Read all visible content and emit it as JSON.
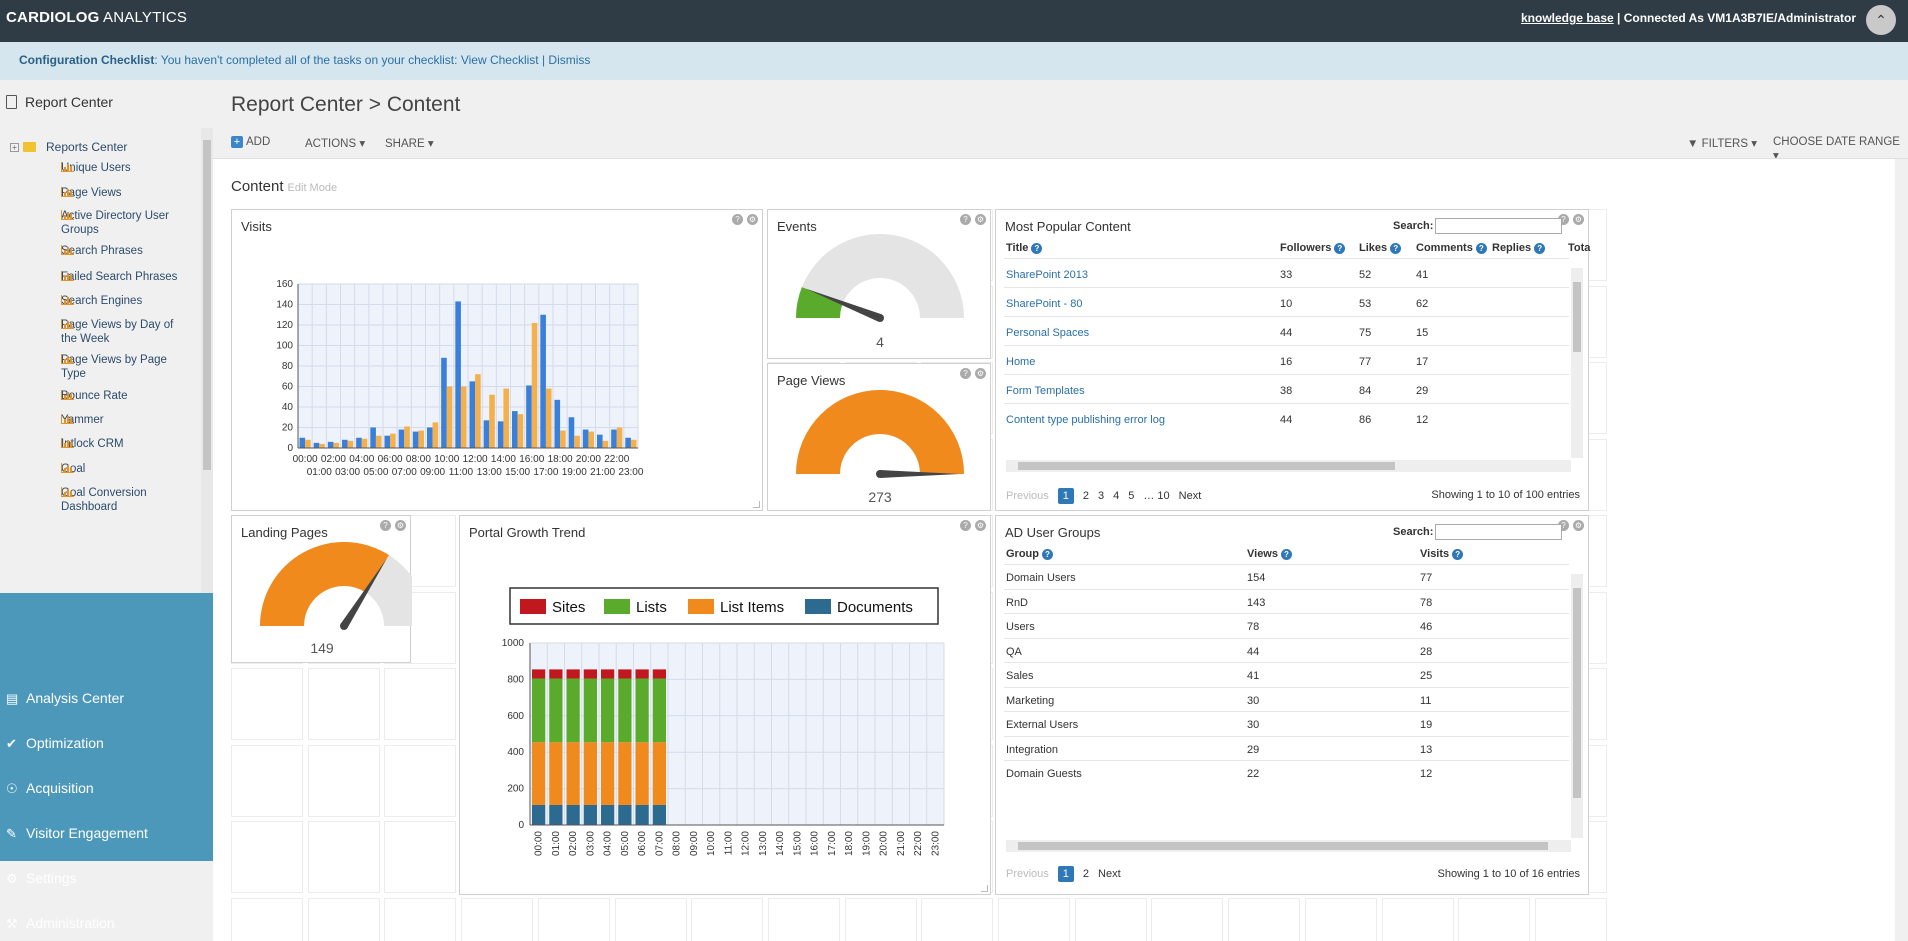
{
  "app": {
    "brand_bold": "CARDIOLOG",
    "brand_rest": " ANALYTICS",
    "kb_link": "knowledge base",
    "connected": " | Connected As VM1A3B7IE/Administrator"
  },
  "checklist": {
    "label": "Configuration Checklist",
    "text": ": You haven't completed all of the tasks on your checklist: ",
    "view": "View Checklist",
    "sep": " | ",
    "dismiss": "Dismiss"
  },
  "sidebar": {
    "header": "Report Center",
    "root": "Reports Center",
    "items": [
      "Unique Users",
      "Page Views",
      "Active Directory User Groups",
      "Search Phrases",
      "Failed Search Phrases",
      "Search Engines",
      "Page Views by Day of the Week",
      "Page Views by Page Type",
      "Bounce Rate",
      "Yammer",
      "Intlock CRM",
      "Goal",
      "Goal Conversion Dashboard"
    ]
  },
  "nav": [
    "Analysis Center",
    "Optimization",
    "Acquisition",
    "Visitor Engagement",
    "Settings",
    "Administration"
  ],
  "page": {
    "title": "Report Center > Content",
    "content_title": "Content",
    "edit_mode": "Edit Mode"
  },
  "toolbar": {
    "add": "ADD",
    "actions": "ACTIONS",
    "share": "SHARE",
    "filters": "FILTERS",
    "date_range": "CHOOSE DATE RANGE"
  },
  "gauges": {
    "events": {
      "title": "Events",
      "value": "4",
      "level": 0.12,
      "color": "#5aab2b"
    },
    "page_views": {
      "title": "Page Views",
      "value": "273",
      "level": 1.0,
      "color": "#f08a1c"
    },
    "landing": {
      "title": "Landing Pages",
      "value": "149",
      "level": 0.68,
      "color": "#f08a1c"
    }
  },
  "popular": {
    "title": "Most Popular Content",
    "search_label": "Search:",
    "headers": [
      "Title",
      "Followers",
      "Likes",
      "Comments",
      "Replies",
      "Tota"
    ],
    "rows": [
      [
        "SharePoint 2013",
        "33",
        "52",
        "41"
      ],
      [
        "SharePoint - 80",
        "10",
        "53",
        "62"
      ],
      [
        "Personal Spaces",
        "44",
        "75",
        "15"
      ],
      [
        "Home",
        "16",
        "77",
        "17"
      ],
      [
        "Form Templates",
        "38",
        "84",
        "29"
      ],
      [
        "Content type publishing error log",
        "44",
        "86",
        "12"
      ]
    ],
    "pager": {
      "prev": "Previous",
      "pages": [
        "1",
        "2",
        "3",
        "4",
        "5",
        "…",
        "10"
      ],
      "next": "Next"
    },
    "showing": "Showing 1 to 10 of 100 entries"
  },
  "ad_groups": {
    "title": "AD User Groups",
    "search_label": "Search:",
    "headers": [
      "Group",
      "Views",
      "Visits"
    ],
    "rows": [
      [
        "Domain Users",
        "154",
        "77"
      ],
      [
        "RnD",
        "143",
        "78"
      ],
      [
        "Users",
        "78",
        "46"
      ],
      [
        "QA",
        "44",
        "28"
      ],
      [
        "Sales",
        "41",
        "25"
      ],
      [
        "Marketing",
        "30",
        "11"
      ],
      [
        "External Users",
        "30",
        "19"
      ],
      [
        "Integration",
        "29",
        "13"
      ],
      [
        "Domain Guests",
        "22",
        "12"
      ]
    ],
    "pager": {
      "prev": "Previous",
      "pages": [
        "1",
        "2"
      ],
      "next": "Next"
    },
    "showing": "Showing 1 to 10 of 16 entries"
  },
  "chart_data": [
    {
      "type": "bar",
      "title": "Visits",
      "categories": [
        "00:00",
        "01:00",
        "02:00",
        "03:00",
        "04:00",
        "05:00",
        "06:00",
        "07:00",
        "08:00",
        "09:00",
        "10:00",
        "11:00",
        "12:00",
        "13:00",
        "14:00",
        "15:00",
        "16:00",
        "17:00",
        "18:00",
        "19:00",
        "20:00",
        "21:00",
        "22:00",
        "23:00"
      ],
      "series": [
        {
          "color": "#3a7fd9",
          "values": [
            10,
            5,
            6,
            8,
            10,
            20,
            12,
            18,
            16,
            20,
            88,
            143,
            65,
            27,
            26,
            36,
            61,
            130,
            47,
            30,
            18,
            13,
            18,
            10
          ]
        },
        {
          "color": "#f4b04c",
          "values": [
            8,
            4,
            5,
            7,
            9,
            12,
            14,
            21,
            17,
            25,
            60,
            60,
            72,
            52,
            58,
            33,
            122,
            58,
            17,
            12,
            16,
            7,
            20,
            8
          ]
        }
      ],
      "ylim": [
        0,
        160
      ],
      "yticks": [
        0,
        20,
        40,
        60,
        80,
        100,
        120,
        140,
        160
      ],
      "xticks_top": [
        "00:00",
        "02:00",
        "04:00",
        "06:00",
        "08:00",
        "10:00",
        "12:00",
        "14:00",
        "16:00",
        "18:00",
        "20:00",
        "22:00"
      ],
      "xticks_bottom": [
        "01:00",
        "03:00",
        "05:00",
        "07:00",
        "09:00",
        "11:00",
        "13:00",
        "15:00",
        "17:00",
        "19:00",
        "21:00",
        "23:00"
      ],
      "grid": true
    },
    {
      "type": "bar",
      "stacked": true,
      "title": "Portal Growth Trend",
      "categories": [
        "00:00",
        "01:00",
        "02:00",
        "03:00",
        "04:00",
        "05:00",
        "06:00",
        "07:00",
        "08:00",
        "09:00",
        "10:00",
        "11:00",
        "12:00",
        "13:00",
        "14:00",
        "15:00",
        "16:00",
        "17:00",
        "18:00",
        "19:00",
        "20:00",
        "21:00",
        "22:00",
        "23:00"
      ],
      "series": [
        {
          "name": "Documents",
          "color": "#2d6a8f",
          "values": [
            110,
            110,
            110,
            110,
            110,
            110,
            110,
            110,
            0,
            0,
            0,
            0,
            0,
            0,
            0,
            0,
            0,
            0,
            0,
            0,
            0,
            0,
            0,
            0
          ]
        },
        {
          "name": "List Items",
          "color": "#f08a1c",
          "values": [
            345,
            345,
            345,
            345,
            345,
            345,
            345,
            345,
            0,
            0,
            0,
            0,
            0,
            0,
            0,
            0,
            0,
            0,
            0,
            0,
            0,
            0,
            0,
            0
          ]
        },
        {
          "name": "Lists",
          "color": "#5aab2b",
          "values": [
            350,
            350,
            350,
            350,
            350,
            350,
            350,
            350,
            0,
            0,
            0,
            0,
            0,
            0,
            0,
            0,
            0,
            0,
            0,
            0,
            0,
            0,
            0,
            0
          ]
        },
        {
          "name": "Sites",
          "color": "#c0181e",
          "values": [
            50,
            50,
            50,
            50,
            50,
            50,
            50,
            50,
            0,
            0,
            0,
            0,
            0,
            0,
            0,
            0,
            0,
            0,
            0,
            0,
            0,
            0,
            0,
            0
          ]
        }
      ],
      "legend_order": [
        "Sites",
        "Lists",
        "List Items",
        "Documents"
      ],
      "ylim": [
        0,
        1000
      ],
      "yticks": [
        0,
        200,
        400,
        600,
        800,
        1000
      ],
      "legend": "top",
      "grid": true
    }
  ]
}
